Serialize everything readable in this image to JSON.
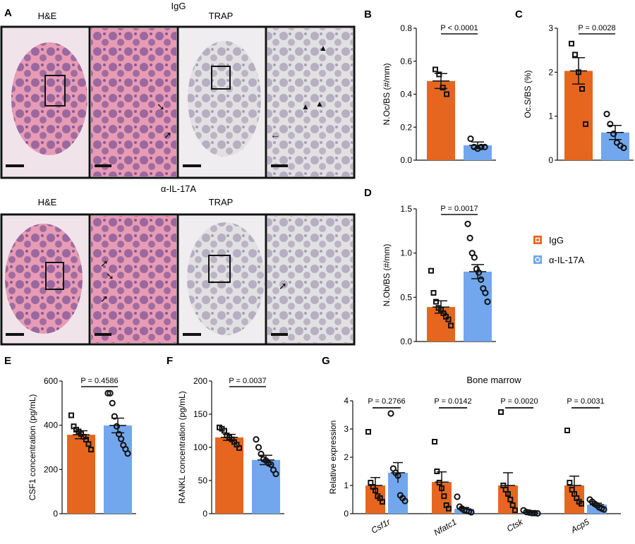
{
  "colors": {
    "igg": "#E6661F",
    "anti": "#72A7EE",
    "he_bg": "#E79BB4",
    "he_cell": "#5A3E8C",
    "trap_bg": "#E3E0E3",
    "trap_cell": "#7D7497"
  },
  "histology": {
    "A": {
      "letter": "A",
      "groups": [
        {
          "title": "IgG",
          "stain_left": "H&E",
          "stain_right": "TRAP"
        },
        {
          "title": "α-IL-17A",
          "stain_left": "H&E",
          "stain_right": "TRAP"
        }
      ]
    }
  },
  "legend": [
    {
      "label": "IgG",
      "color_key": "igg",
      "marker": "square"
    },
    {
      "label": "α-IL-17A",
      "color_key": "anti",
      "marker": "circle"
    }
  ],
  "chart_data": [
    {
      "panel": "B",
      "type": "bar",
      "categories": [
        "IgG",
        "α-IL-17A"
      ],
      "values": [
        0.48,
        0.09
      ],
      "sem": [
        0.045,
        0.02
      ],
      "points": [
        [
          0.55,
          0.52,
          0.44,
          0.4
        ],
        [
          0.13,
          0.08,
          0.07,
          0.08,
          0.08
        ]
      ],
      "ylabel": "N.Oc/BS (#/mm)",
      "ylim": [
        0,
        0.8
      ],
      "yticks": [
        "0.0",
        "0.2",
        "0.4",
        "0.6",
        "0.8"
      ],
      "pvalue": "P < 0.0001"
    },
    {
      "panel": "C",
      "type": "bar",
      "categories": [
        "IgG",
        "α-IL-17A"
      ],
      "values": [
        2.03,
        0.63
      ],
      "sem": [
        0.3,
        0.16
      ],
      "points": [
        [
          2.65,
          2.4,
          2.0,
          1.62,
          0.82
        ],
        [
          1.05,
          0.82,
          0.6,
          0.4,
          0.33,
          0.28
        ]
      ],
      "ylabel": "Oc.S/BS (%)",
      "ylim": [
        0,
        3
      ],
      "yticks": [
        "0",
        "1",
        "2",
        "3"
      ],
      "pvalue": "P = 0.0028"
    },
    {
      "panel": "D",
      "type": "bar",
      "categories": [
        "IgG",
        "α-IL-17A"
      ],
      "values": [
        0.39,
        0.79
      ],
      "sem": [
        0.07,
        0.08
      ],
      "points": [
        [
          0.8,
          0.55,
          0.45,
          0.38,
          0.36,
          0.32,
          0.28,
          0.25,
          0.18
        ],
        [
          1.33,
          1.17,
          1.0,
          0.95,
          0.82,
          0.78,
          0.7,
          0.6,
          0.55,
          0.45
        ]
      ],
      "ylabel": "N.Ob/BS (#/mm)",
      "ylim": [
        0,
        1.5
      ],
      "yticks": [
        "0.0",
        "0.5",
        "1.0",
        "1.5"
      ],
      "pvalue": "P = 0.0017"
    },
    {
      "panel": "E",
      "type": "bar",
      "categories": [
        "IgG",
        "α-IL-17A"
      ],
      "values": [
        357,
        399
      ],
      "sem": [
        18,
        33
      ],
      "points": [
        [
          445,
          395,
          380,
          372,
          360,
          348,
          335,
          315,
          290
        ],
        [
          545,
          545,
          500,
          440,
          395,
          360,
          338,
          310,
          292,
          272
        ]
      ],
      "ylabel": "CSF1 concentration (pg/mL)",
      "ylim": [
        0,
        600
      ],
      "yticks": [
        "0",
        "200",
        "400",
        "600"
      ],
      "pvalue": "P = 0.4586"
    },
    {
      "panel": "F",
      "type": "bar",
      "categories": [
        "IgG",
        "α-IL-17A"
      ],
      "values": [
        115,
        81
      ],
      "sem": [
        4.5,
        7
      ],
      "points": [
        [
          130,
          128,
          125,
          118,
          115,
          112,
          108,
          104,
          99
        ],
        [
          112,
          100,
          90,
          82,
          80,
          76,
          74,
          66,
          60
        ]
      ],
      "ylabel": "RANKL concentration (pg/mL)",
      "ylim": [
        0,
        200
      ],
      "yticks": [
        "0",
        "50",
        "100",
        "150",
        "200"
      ],
      "pvalue": "P = 0.0037"
    },
    {
      "panel": "G",
      "type": "bar",
      "title": "Bone marrow",
      "categories": [
        "Csf1r",
        "Nfatc1",
        "Ctsk",
        "Acp5"
      ],
      "series": [
        {
          "name": "IgG",
          "values": [
            1.0,
            1.12,
            1.0,
            1.0
          ],
          "sem": [
            0.28,
            0.36,
            0.45,
            0.33
          ],
          "points": [
            [
              2.9,
              1.1,
              0.95,
              0.82,
              0.62,
              0.55,
              0.42
            ],
            [
              2.55,
              1.5,
              1.1,
              0.9,
              0.62,
              0.3,
              0.18
            ],
            [
              3.6,
              1.0,
              0.85,
              0.7,
              0.5,
              0.3,
              0.12
            ],
            [
              2.95,
              1.1,
              0.85,
              0.7,
              0.55,
              0.42,
              0.35
            ]
          ]
        },
        {
          "name": "α-IL-17A",
          "values": [
            1.45,
            0.17,
            0.04,
            0.32
          ],
          "sem": [
            0.36,
            0.05,
            0.02,
            0.05
          ],
          "points": [
            [
              3.55,
              1.6,
              1.45,
              1.35,
              0.65,
              0.55,
              0.45
            ],
            [
              0.6,
              0.25,
              0.18,
              0.12,
              0.1,
              0.08,
              0.05
            ],
            [
              0.12,
              0.06,
              0.04,
              0.02,
              0.02,
              0.01
            ],
            [
              0.5,
              0.42,
              0.35,
              0.3,
              0.22,
              0.18,
              0.15
            ]
          ]
        }
      ],
      "ylabel": "Relative expression",
      "ylim": [
        0,
        4
      ],
      "yticks": [
        "0",
        "1",
        "2",
        "3",
        "4"
      ],
      "pvalues": [
        "P = 0.2766",
        "P = 0.0142",
        "P = 0.0020",
        "P = 0.0031"
      ]
    }
  ]
}
